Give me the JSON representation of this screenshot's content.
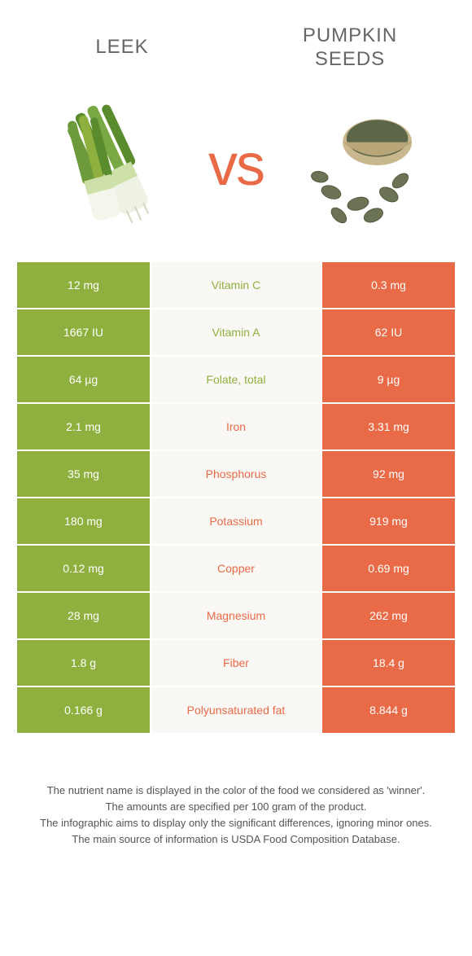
{
  "header": {
    "leftTitle": "Leek",
    "rightTitle": "Pumpkin seeds"
  },
  "vsLabel": "vs",
  "colors": {
    "leftFood": "#8fb03e",
    "rightFood": "#e96a47",
    "midBg": "#faf8f5",
    "background": "#ffffff",
    "text": "#666666"
  },
  "rows": [
    {
      "left": "12 mg",
      "mid": "Vitamin C",
      "right": "0.3 mg",
      "winner": "left"
    },
    {
      "left": "1667 IU",
      "mid": "Vitamin A",
      "right": "62 IU",
      "winner": "left"
    },
    {
      "left": "64 µg",
      "mid": "Folate, total",
      "right": "9 µg",
      "winner": "left"
    },
    {
      "left": "2.1 mg",
      "mid": "Iron",
      "right": "3.31 mg",
      "winner": "right"
    },
    {
      "left": "35 mg",
      "mid": "Phosphorus",
      "right": "92 mg",
      "winner": "right"
    },
    {
      "left": "180 mg",
      "mid": "Potassium",
      "right": "919 mg",
      "winner": "right"
    },
    {
      "left": "0.12 mg",
      "mid": "Copper",
      "right": "0.69 mg",
      "winner": "right"
    },
    {
      "left": "28 mg",
      "mid": "Magnesium",
      "right": "262 mg",
      "winner": "right"
    },
    {
      "left": "1.8 g",
      "mid": "Fiber",
      "right": "18.4 g",
      "winner": "right"
    },
    {
      "left": "0.166 g",
      "mid": "Polyunsaturated fat",
      "right": "8.844 g",
      "winner": "right"
    }
  ],
  "footer": {
    "line1": "The nutrient name is displayed in the color of the food we considered as 'winner'.",
    "line2": "The amounts are specified per 100 gram of the product.",
    "line3": "The infographic aims to display only the significant differences, ignoring minor ones.",
    "line4": "The main source of information is USDA Food Composition Database."
  }
}
